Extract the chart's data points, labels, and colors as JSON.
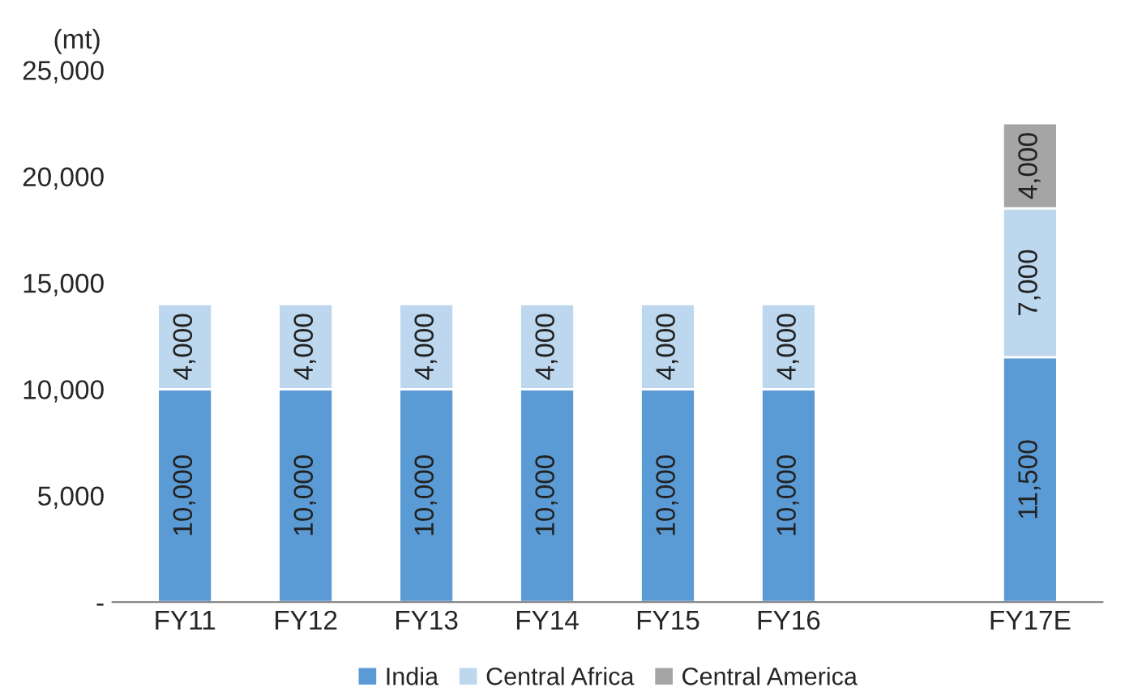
{
  "chart_data": {
    "type": "bar",
    "stacked": true,
    "ylabel": "(mt)",
    "categories": [
      "FY11",
      "FY12",
      "FY13",
      "FY14",
      "FY15",
      "FY16",
      null,
      "FY17E"
    ],
    "series": [
      {
        "name": "India",
        "color": "#5b9bd5",
        "values": [
          10000,
          10000,
          10000,
          10000,
          10000,
          10000,
          null,
          11500
        ],
        "value_labels": [
          "10,000",
          "10,000",
          "10,000",
          "10,000",
          "10,000",
          "10,000",
          null,
          "11,500"
        ]
      },
      {
        "name": "Central Africa",
        "color": "#bdd7ee",
        "values": [
          4000,
          4000,
          4000,
          4000,
          4000,
          4000,
          null,
          7000
        ],
        "value_labels": [
          "4,000",
          "4,000",
          "4,000",
          "4,000",
          "4,000",
          "4,000",
          null,
          "7,000"
        ]
      },
      {
        "name": "Central America",
        "color": "#a5a5a5",
        "values": [
          null,
          null,
          null,
          null,
          null,
          null,
          null,
          4000
        ],
        "value_labels": [
          null,
          null,
          null,
          null,
          null,
          null,
          null,
          "4,000"
        ]
      }
    ],
    "ylim": [
      0,
      25000
    ],
    "yticks": [
      {
        "value": 0,
        "label": "-"
      },
      {
        "value": 5000,
        "label": "5,000"
      },
      {
        "value": 10000,
        "label": "10,000"
      },
      {
        "value": 15000,
        "label": "15,000"
      },
      {
        "value": 20000,
        "label": "20,000"
      },
      {
        "value": 25000,
        "label": "25,000"
      }
    ],
    "legend": "bottom",
    "grid": false
  }
}
